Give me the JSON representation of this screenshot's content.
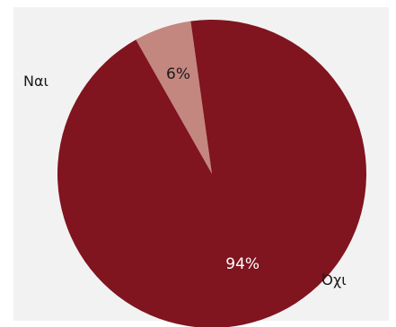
{
  "chart_data": {
    "type": "pie",
    "categories": [
      "Ναι",
      "Όχι"
    ],
    "values": [
      6,
      94
    ],
    "value_labels": [
      "6%",
      "94%"
    ],
    "colors": [
      "#c4877f",
      "#80141f"
    ],
    "label_colors": [
      "#1a1a1a",
      "#ffffff"
    ],
    "start_angle_deg": -119.5,
    "background": "#f2f2f2"
  }
}
